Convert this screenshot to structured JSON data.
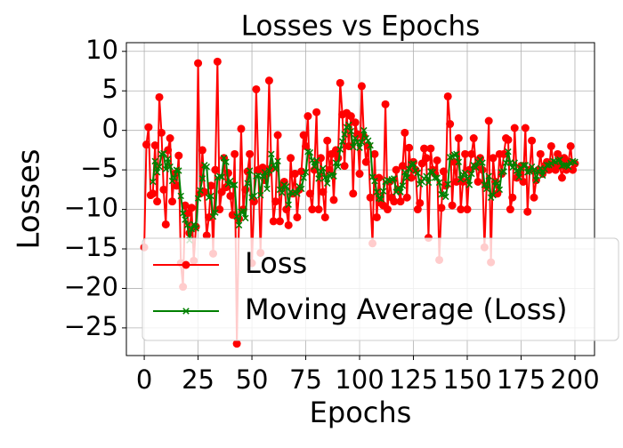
{
  "chart_data": {
    "type": "line",
    "title": "Losses vs Epochs",
    "xlabel": "Epochs",
    "ylabel": "Losses",
    "xlim": [
      -8.3,
      209.1
    ],
    "ylim": [
      -28.5,
      11.1
    ],
    "xticks": [
      0,
      25,
      50,
      75,
      100,
      125,
      150,
      175,
      200
    ],
    "yticks": [
      {
        "value": -25,
        "label": "−25"
      },
      {
        "value": -20,
        "label": "−20"
      },
      {
        "value": -15,
        "label": "−15"
      },
      {
        "value": -10,
        "label": "−10"
      },
      {
        "value": -5,
        "label": "−5"
      },
      0,
      5,
      10
    ],
    "grid": true,
    "legend": "lower right",
    "x": [
      0,
      1,
      2,
      3,
      4,
      5,
      6,
      7,
      8,
      9,
      10,
      11,
      12,
      13,
      14,
      15,
      16,
      17,
      18,
      19,
      20,
      21,
      22,
      23,
      24,
      25,
      26,
      27,
      28,
      29,
      30,
      31,
      32,
      33,
      34,
      35,
      36,
      37,
      38,
      39,
      40,
      41,
      42,
      43,
      44,
      45,
      46,
      47,
      48,
      49,
      50,
      51,
      52,
      53,
      54,
      55,
      56,
      57,
      58,
      59,
      60,
      61,
      62,
      63,
      64,
      65,
      66,
      67,
      68,
      69,
      70,
      71,
      72,
      73,
      74,
      75,
      76,
      77,
      78,
      79,
      80,
      81,
      82,
      83,
      84,
      85,
      86,
      87,
      88,
      89,
      90,
      91,
      92,
      93,
      94,
      95,
      96,
      97,
      98,
      99,
      100,
      101,
      102,
      103,
      104,
      105,
      106,
      107,
      108,
      109,
      110,
      111,
      112,
      113,
      114,
      115,
      116,
      117,
      118,
      119,
      120,
      121,
      122,
      123,
      124,
      125,
      126,
      127,
      128,
      129,
      130,
      131,
      132,
      133,
      134,
      135,
      136,
      137,
      138,
      139,
      140,
      141,
      142,
      143,
      144,
      145,
      146,
      147,
      148,
      149,
      150,
      151,
      152,
      153,
      154,
      155,
      156,
      157,
      158,
      159,
      160,
      161,
      162,
      163,
      164,
      165,
      166,
      167,
      168,
      169,
      170,
      171,
      172,
      173,
      174,
      175,
      176,
      177,
      178,
      179,
      180,
      181,
      182,
      183,
      184,
      185,
      186,
      187,
      188,
      189,
      190,
      191,
      192,
      193,
      194,
      195,
      196,
      197,
      198,
      199,
      200
    ],
    "series": [
      {
        "name": "Loss",
        "color": "#ff0000",
        "marker": "circle",
        "values": [
          -14.8,
          -1.8,
          0.4,
          -8.2,
          -8.0,
          -1.9,
          -9.0,
          4.2,
          -0.3,
          -7.5,
          -11.9,
          -2.5,
          -1.0,
          -9.0,
          -5.5,
          -7.0,
          -3.2,
          -16.8,
          -19.8,
          -9.5,
          -10.5,
          -13.0,
          -9.8,
          -16.5,
          -12.2,
          8.5,
          -8.0,
          -2.5,
          -7.8,
          -13.3,
          -11.0,
          -7.0,
          -15.6,
          -5.0,
          8.7,
          -10.0,
          -7.8,
          -3.5,
          -7.2,
          -5.4,
          -8.3,
          -10.7,
          -3.0,
          -27.0,
          -11.2,
          0.2,
          -10.0,
          -7.5,
          -5.2,
          -3.0,
          -16.8,
          -9.0,
          5.2,
          -5.0,
          -15.5,
          -4.7,
          -6.3,
          -5.5,
          6.3,
          -4.8,
          -11.5,
          -9.0,
          -0.6,
          -11.5,
          -7.0,
          -6.5,
          -10.0,
          -12.0,
          -3.5,
          -8.0,
          -5.5,
          -11.0,
          -7.5,
          -5.2,
          -0.6,
          -2.0,
          1.8,
          -8.0,
          -10.0,
          -5.0,
          2.3,
          -10.0,
          -3.5,
          -7.8,
          -11.0,
          -1.3,
          -5.0,
          -3.0,
          -8.8,
          -2.5,
          -3.5,
          6.0,
          2.0,
          -4.5,
          2.2,
          -2.0,
          1.8,
          -8.0,
          1.0,
          -0.5,
          -5.5,
          5.6,
          -0.8,
          -4.0,
          -2.0,
          -8.5,
          -14.3,
          -3.0,
          -11.0,
          -6.0,
          -9.2,
          -9.5,
          3.3,
          -10.0,
          -6.5,
          -8.5,
          -9.0,
          -5.0,
          -7.5,
          -9.0,
          -4.5,
          -0.3,
          -8.5,
          -2.2,
          -6.0,
          -4.0,
          -5.0,
          -10.0,
          -9.2,
          -4.2,
          -2.3,
          -3.5,
          -13.6,
          -2.3,
          -5.0,
          -5.5,
          -3.8,
          -16.4,
          -9.8,
          -5.2,
          -7.0,
          4.3,
          0.8,
          -9.5,
          -4.0,
          -6.5,
          -1.0,
          -10.0,
          -6.5,
          -3.0,
          -10.0,
          -5.0,
          -3.0,
          -1.0,
          -4.5,
          -6.5,
          -3.5,
          -5.0,
          -14.8,
          -7.0,
          1.2,
          -16.7,
          -3.5,
          -6.5,
          -8.0,
          -3.0,
          -5.5,
          -3.0,
          -1.0,
          -1.2,
          -10.0,
          -8.5,
          0.3,
          -6.0,
          -5.5,
          -4.5,
          -6.5,
          0.3,
          -10.3,
          -5.0,
          -1.3,
          -8.5,
          -6.3,
          -5.0,
          -3.0,
          -5.5,
          -4.5,
          -4.0,
          -5.0,
          -2.0,
          -4.2,
          -5.0,
          -3.0,
          -4.5,
          -6.0,
          -3.5,
          -5.0,
          -4.0,
          -2.0,
          -5.0,
          -4.2
        ]
      },
      {
        "name": "Moving Average (Loss)",
        "color": "#008000",
        "marker": "x",
        "values": [
          null,
          null,
          null,
          null,
          -6.5,
          -3.9,
          -5.3,
          -4.6,
          -3.0,
          -2.9,
          -4.9,
          -3.6,
          -4.6,
          -6.4,
          -6.0,
          -5.0,
          -5.1,
          -8.3,
          -10.5,
          -11.3,
          -12.0,
          -13.9,
          -12.5,
          -11.9,
          -12.4,
          -8.6,
          -7.6,
          -6.1,
          -4.4,
          -4.6,
          -8.5,
          -8.3,
          -10.9,
          -10.4,
          -6.0,
          -5.8,
          -5.9,
          -3.5,
          -4.0,
          -6.8,
          -6.4,
          -7.0,
          -6.9,
          -10.9,
          -12.0,
          -10.3,
          -10.2,
          -11.1,
          -6.7,
          -5.1,
          -8.5,
          -8.3,
          -5.8,
          -5.7,
          -8.2,
          -5.8,
          -5.3,
          -7.4,
          -5.1,
          -3.0,
          -4.4,
          -4.9,
          -3.9,
          -7.5,
          -7.9,
          -6.9,
          -7.1,
          -9.4,
          -7.8,
          -8.0,
          -7.8,
          -8.0,
          -7.1,
          -7.4,
          -6.0,
          -5.3,
          -2.7,
          -2.8,
          -3.8,
          -4.6,
          -3.8,
          -6.1,
          -5.2,
          -4.8,
          -6.0,
          -6.7,
          -5.7,
          -5.6,
          -5.8,
          -4.1,
          -4.6,
          -2.4,
          -1.4,
          -0.5,
          0.4,
          0.7,
          -0.1,
          -2.1,
          -1.0,
          -1.5,
          -2.2,
          -1.5,
          0.0,
          -1.0,
          -1.3,
          -1.9,
          -5.9,
          -6.4,
          -7.8,
          -8.6,
          -8.7,
          -7.7,
          -6.5,
          -6.3,
          -6.4,
          -6.2,
          -6.1,
          -7.8,
          -7.3,
          -7.8,
          -7.0,
          -5.3,
          -6.0,
          -4.9,
          -4.3,
          -4.2,
          -5.1,
          -5.4,
          -6.8,
          -6.5,
          -6.1,
          -5.8,
          -6.6,
          -5.2,
          -5.3,
          -6.0,
          -6.0,
          -6.6,
          -8.1,
          -8.1,
          -8.4,
          -6.8,
          -3.4,
          -3.3,
          -3.1,
          -3.0,
          -4.0,
          -6.2,
          -5.6,
          -5.4,
          -6.1,
          -6.9,
          -5.5,
          -4.4,
          -4.7,
          -4.0,
          -3.7,
          -4.1,
          -6.9,
          -7.4,
          -5.8,
          -8.5,
          -8.2,
          -6.5,
          -6.7,
          -7.5,
          -5.3,
          -5.2,
          -4.1,
          -2.7,
          -4.1,
          -4.7,
          -4.1,
          -5.1,
          -5.9,
          -4.8,
          -4.4,
          -4.4,
          -5.3,
          -5.2,
          -4.6,
          -5.0,
          -6.3,
          -5.2,
          -4.8,
          -5.7,
          -4.9,
          -4.4,
          -4.4,
          -4.2,
          -3.9,
          -4.0,
          -3.8,
          -3.7,
          -4.5,
          -4.4,
          -4.4,
          -4.6,
          -4.1,
          -3.9,
          -4.0
        ]
      }
    ]
  }
}
